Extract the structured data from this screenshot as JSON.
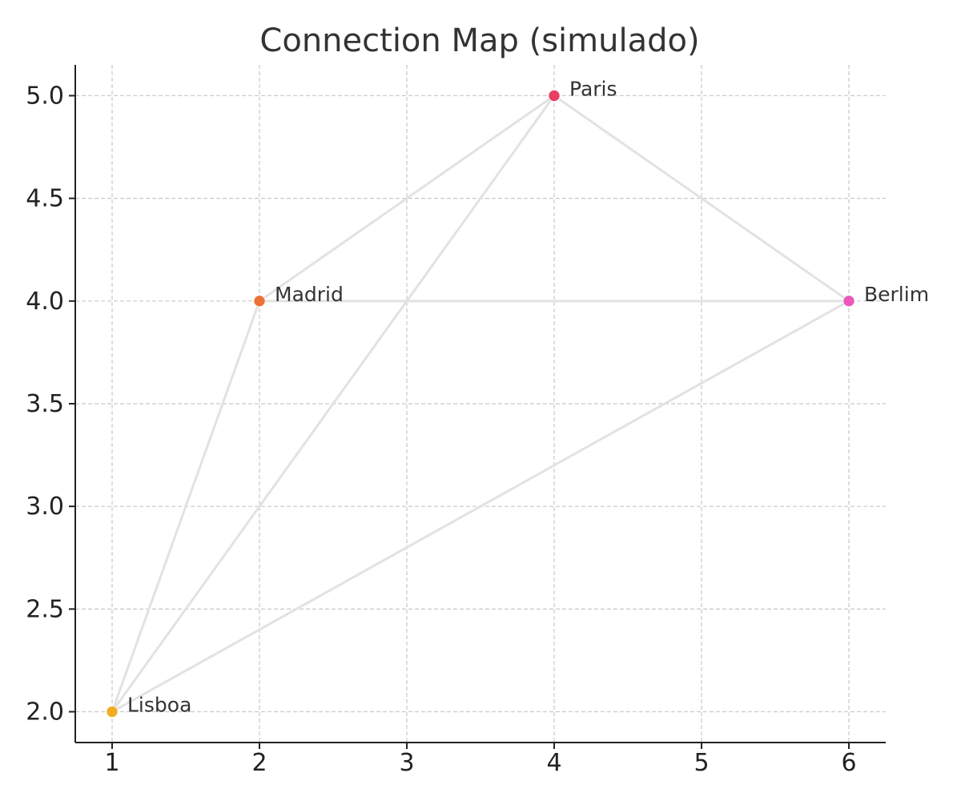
{
  "chart_data": {
    "type": "scatter",
    "title": "Connection Map (simulado)",
    "xlabel": "",
    "ylabel": "",
    "xlim": [
      0.75,
      6.25
    ],
    "ylim": [
      1.85,
      5.15
    ],
    "x_ticks": [
      1,
      2,
      3,
      4,
      5,
      6
    ],
    "x_tick_labels": [
      "1",
      "2",
      "3",
      "4",
      "5",
      "6"
    ],
    "y_ticks": [
      2.0,
      2.5,
      3.0,
      3.5,
      4.0,
      4.5,
      5.0
    ],
    "y_tick_labels": [
      "2.0",
      "2.5",
      "3.0",
      "3.5",
      "4.0",
      "4.5",
      "5.0"
    ],
    "grid": true,
    "points": [
      {
        "label": "Lisboa",
        "x": 1,
        "y": 2.0,
        "color": "#f2a916"
      },
      {
        "label": "Madrid",
        "x": 2,
        "y": 4.0,
        "color": "#ec6a2c"
      },
      {
        "label": "Paris",
        "x": 4,
        "y": 5.0,
        "color": "#e8365c"
      },
      {
        "label": "Berlim",
        "x": 6,
        "y": 4.0,
        "color": "#ec4fb6"
      }
    ],
    "edges": [
      {
        "from": "Lisboa",
        "to": "Madrid"
      },
      {
        "from": "Lisboa",
        "to": "Paris"
      },
      {
        "from": "Lisboa",
        "to": "Berlim"
      },
      {
        "from": "Madrid",
        "to": "Paris"
      },
      {
        "from": "Madrid",
        "to": "Berlim"
      },
      {
        "from": "Paris",
        "to": "Berlim"
      }
    ],
    "edge_color": "#e2e2e2"
  }
}
